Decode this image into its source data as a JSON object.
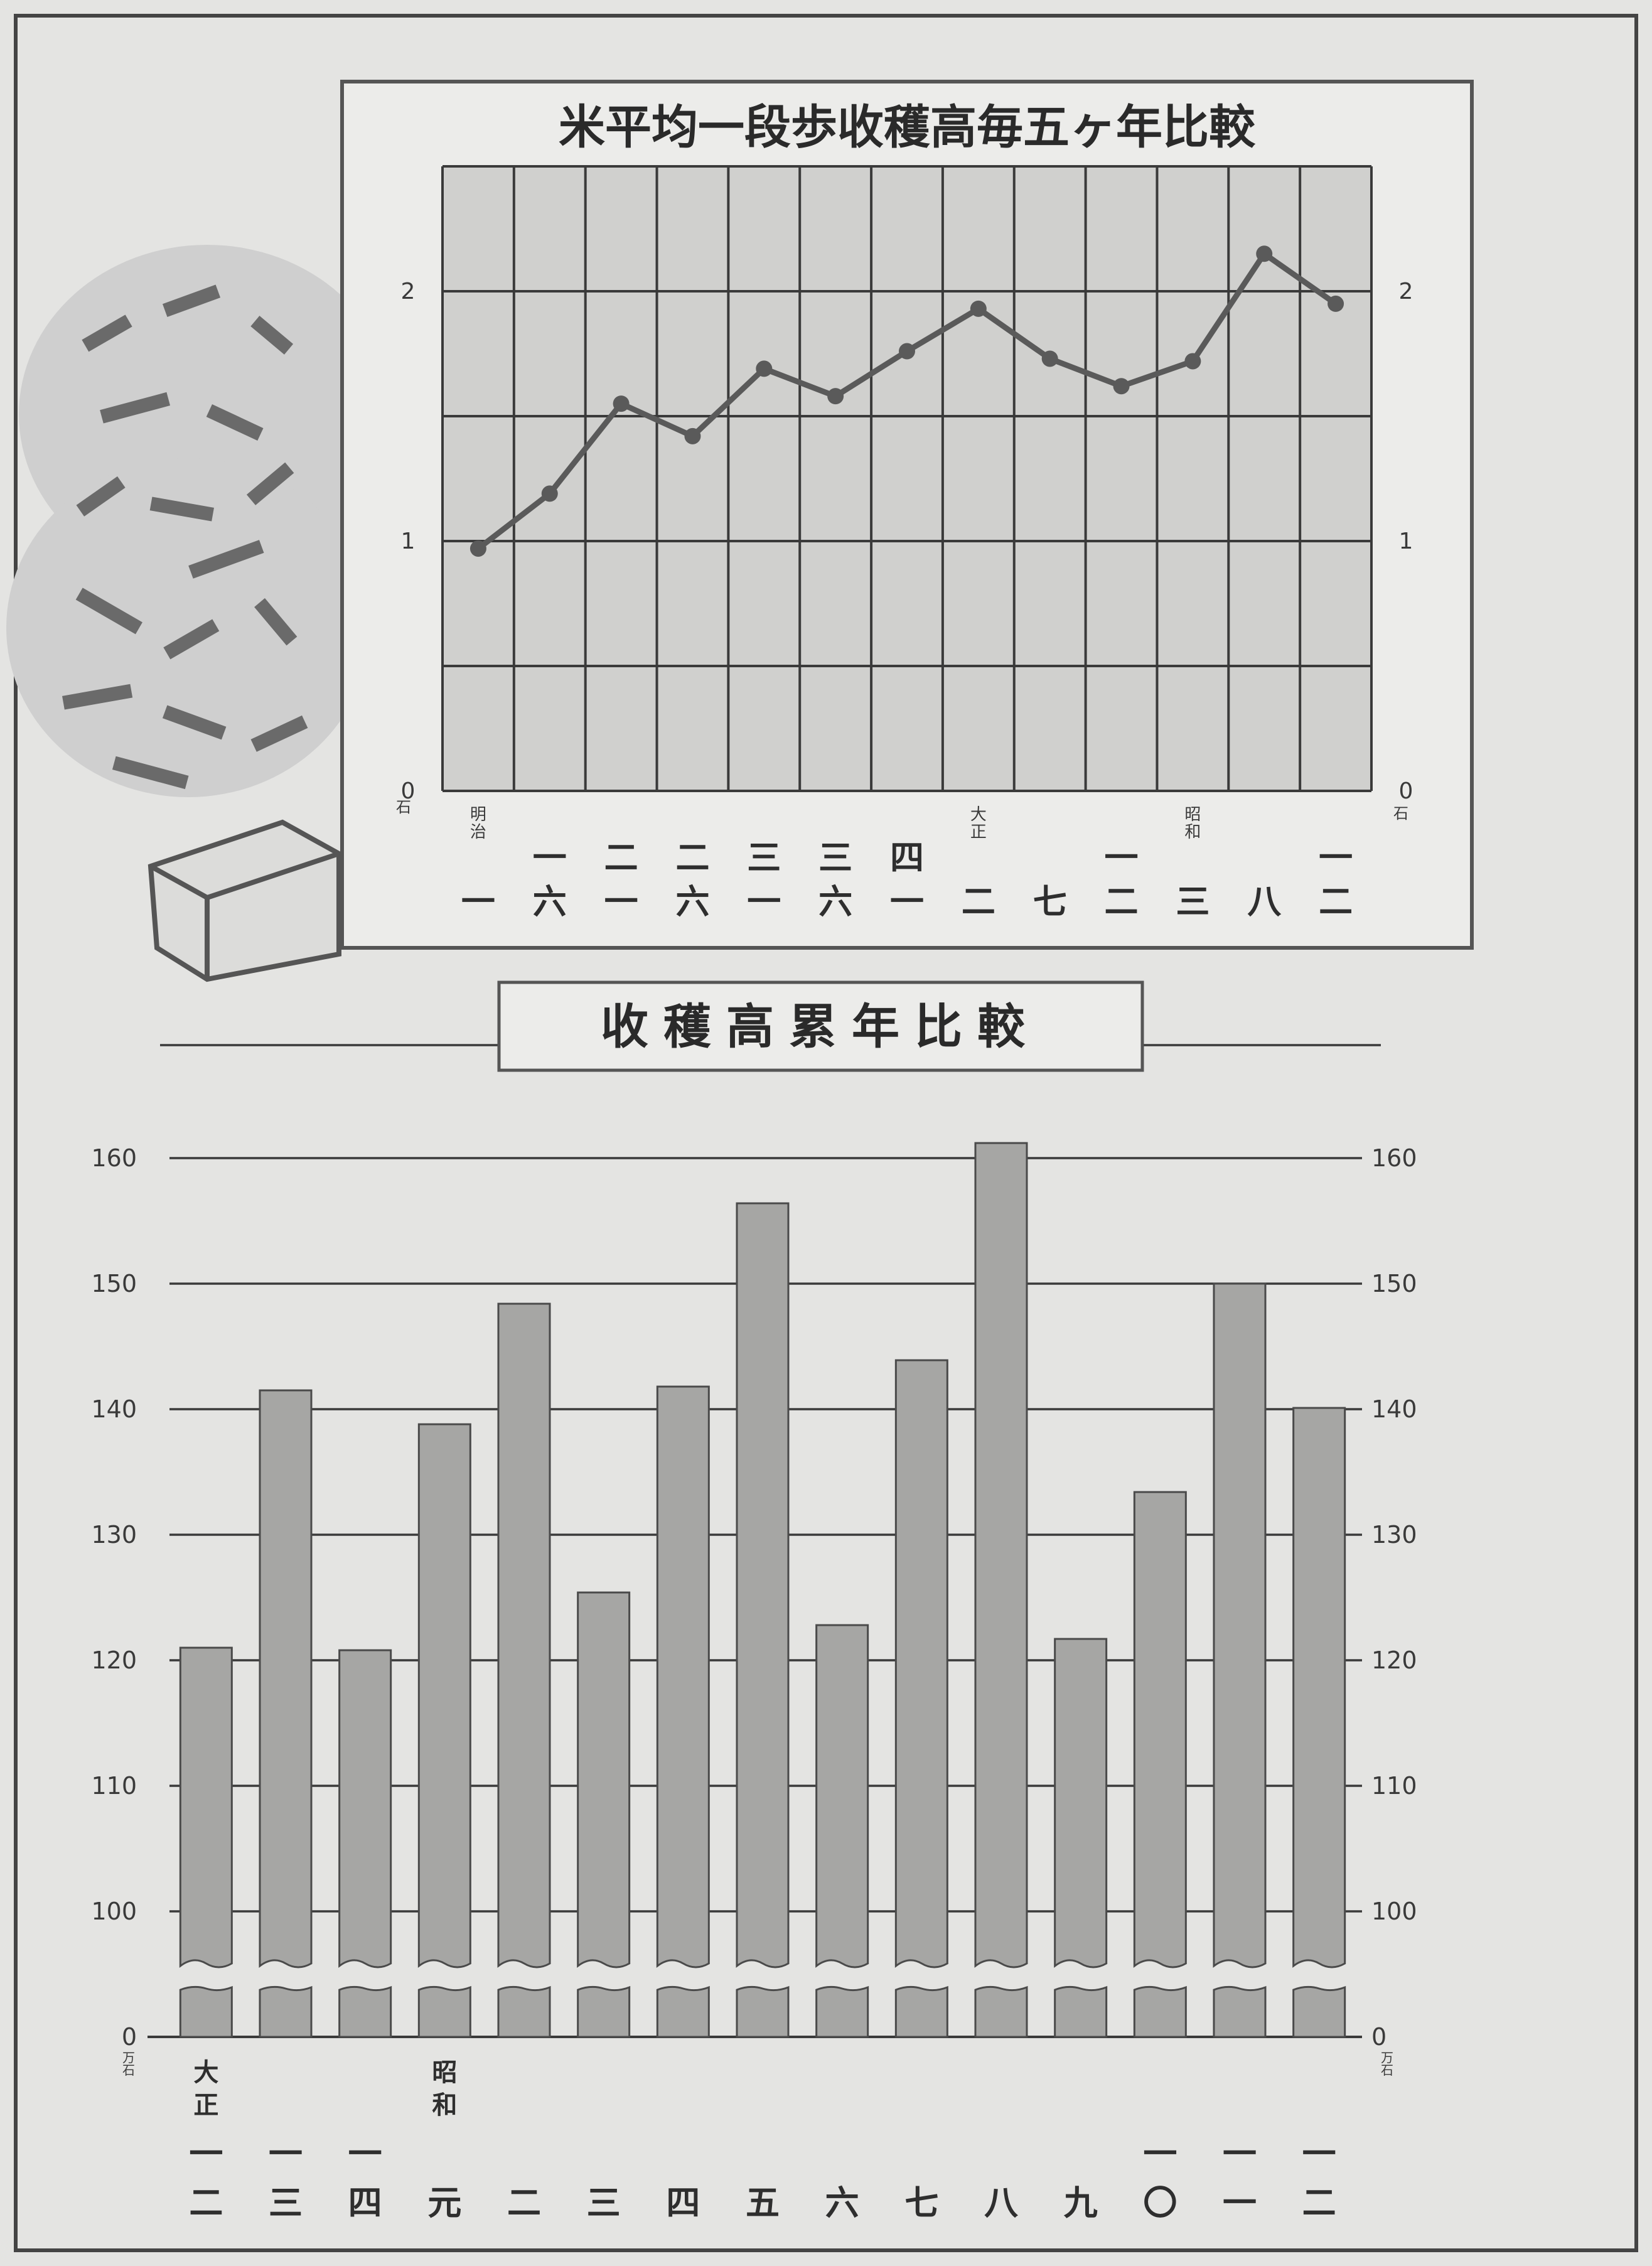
{
  "chart_data": [
    {
      "type": "line",
      "title": "米平均一段歩收穫高毎五ヶ年比較",
      "ylim": [
        0,
        2.5
      ],
      "y_ticks": [
        "0",
        "1",
        "2"
      ],
      "y_unit": "石",
      "grid": true,
      "era_labels": [
        {
          "label": "明治",
          "index": 0
        },
        {
          "label": "大正",
          "index": 7
        },
        {
          "label": "昭和",
          "index": 10
        }
      ],
      "categories": [
        "一",
        "一六",
        "二一",
        "二六",
        "三一",
        "三六",
        "四一",
        "二",
        "七",
        "一二",
        "三",
        "八",
        "一二"
      ],
      "values": [
        0.97,
        1.19,
        1.55,
        1.42,
        1.69,
        1.58,
        1.76,
        1.93,
        1.73,
        1.62,
        1.72,
        2.15,
        1.95
      ]
    },
    {
      "type": "bar",
      "title": "收穫高累年比較",
      "y_ticks": [
        "0",
        "100",
        "110",
        "120",
        "130",
        "140",
        "150",
        "160"
      ],
      "y_unit": "万石",
      "axis_break": true,
      "ylim": [
        90,
        162
      ],
      "era_labels": [
        {
          "label": "大正",
          "index": 0
        },
        {
          "label": "昭和",
          "index": 3
        }
      ],
      "categories": [
        "一二",
        "一三",
        "一四",
        "元",
        "二",
        "三",
        "四",
        "五",
        "六",
        "七",
        "八",
        "九",
        "一〇",
        "一一",
        "一二"
      ],
      "values": [
        121,
        141.5,
        120.8,
        138.8,
        148.4,
        125.4,
        141.8,
        156.4,
        122.8,
        143.9,
        161.2,
        121.7,
        133.4,
        150,
        140.1
      ]
    }
  ]
}
